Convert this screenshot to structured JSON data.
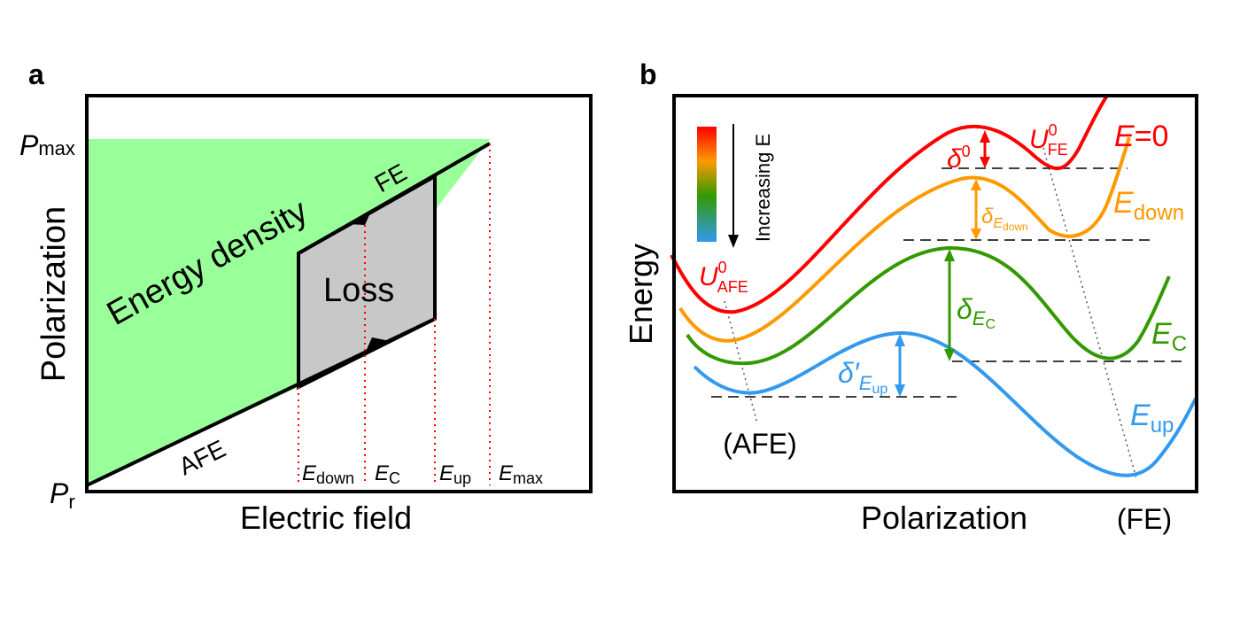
{
  "panel_a": {
    "label": "a",
    "y_axis": "Polarization",
    "x_axis": "Electric field",
    "p_max": {
      "main": "P",
      "sub": "max"
    },
    "p_r": {
      "main": "P",
      "sub": "r"
    },
    "energy_density": "Energy density",
    "loss": "Loss",
    "fe": "FE",
    "afe": "AFE",
    "e_down": {
      "main": "E",
      "sub": "down"
    },
    "e_c": {
      "main": "E",
      "sub": "C"
    },
    "e_up": {
      "main": "E",
      "sub": "up"
    },
    "e_max": {
      "main": "E",
      "sub": "max"
    },
    "colors": {
      "energy_fill": "#99ff99",
      "loss_fill": "#c8c8c8",
      "guide": "#ff0000"
    }
  },
  "panel_b": {
    "label": "b",
    "y_axis": "Energy",
    "x_axis": "Polarization",
    "afe_label": "(AFE)",
    "fe_label": "(FE)",
    "increasing_e": "Increasing E",
    "curves": {
      "e0": {
        "main": "E",
        "rest": "=0",
        "color": "#ff0000"
      },
      "edown": {
        "main": "E",
        "sub": "down",
        "color": "#ff9900"
      },
      "ec": {
        "main": "E",
        "sub": "C",
        "color": "#339900"
      },
      "eup": {
        "main": "E",
        "sub": "up",
        "color": "#3399ee"
      }
    },
    "u_fe": {
      "main": "U",
      "sub": "FE",
      "sup": "0"
    },
    "u_afe": {
      "main": "U",
      "sub": "AFE",
      "sup": "0"
    },
    "delta0": {
      "main": "δ",
      "sup": "0"
    },
    "delta_edown": {
      "main": "δ",
      "sub_main": "E",
      "sub_sub": "down"
    },
    "delta_ec": {
      "main": "δ",
      "sub_main": "E",
      "sub_sub": "C"
    },
    "delta_eup": {
      "main": "δ′",
      "sub_main": "E",
      "sub_sub": "up"
    }
  }
}
